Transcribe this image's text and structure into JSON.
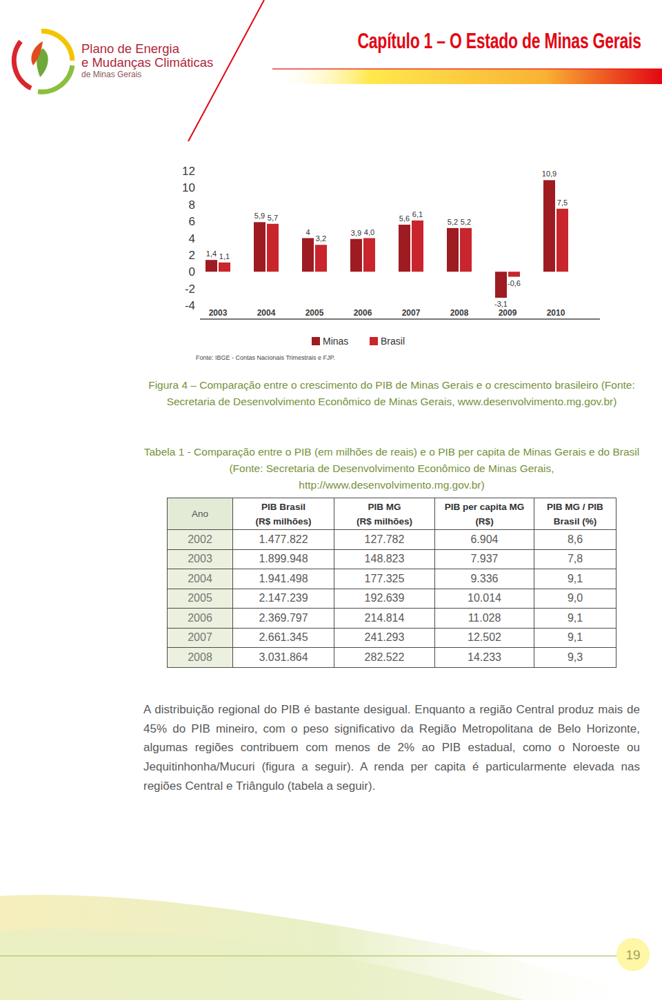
{
  "header": {
    "logo_lines": [
      "Plano de Energia",
      "e Mudanças Climáticas",
      "de Minas Gerais"
    ],
    "chapter_title": "Capítulo 1 – O Estado de Minas Gerais"
  },
  "chart_data": {
    "type": "bar",
    "categories": [
      "2003",
      "2004",
      "2005",
      "2006",
      "2007",
      "2008",
      "2009",
      "2010"
    ],
    "series": [
      {
        "name": "Minas",
        "color": "#9e1b22",
        "values": [
          1.4,
          5.9,
          4,
          3.9,
          5.6,
          5.2,
          -3.1,
          10.9
        ],
        "value_labels": [
          "1,4",
          "5,9",
          "4",
          "3,9",
          "5,6",
          "5,2",
          "-3,1",
          "10,9"
        ]
      },
      {
        "name": "Brasil",
        "color": "#c9252c",
        "values": [
          1.1,
          5.7,
          3.2,
          4.0,
          6.1,
          5.2,
          -0.6,
          7.5
        ],
        "value_labels": [
          "1,1",
          "5,7",
          "3,2",
          "4,0",
          "6,1",
          "5,2",
          "-0,6",
          "7,5"
        ]
      }
    ],
    "ylim": [
      -4,
      12
    ],
    "yticks": [
      -4,
      -2,
      0,
      2,
      4,
      6,
      8,
      10,
      12
    ],
    "grid": false,
    "legend": "bottom",
    "data_labels": true,
    "source": "Fonte: IBGE - Contas Nacionais Trimestrais e FJP."
  },
  "figure_caption": {
    "lines": [
      "Figura 4 – Comparação entre o crescimento do PIB de Minas Gerais e o crescimento brasileiro (Fonte:",
      "Secretaria de Desenvolvimento Econômico de Minas Gerais, www.desenvolvimento.mg.gov.br)"
    ]
  },
  "table_caption": {
    "lines": [
      "Tabela 1 - Comparação entre o PIB (em milhões de reais) e o PIB per capita de Minas Gerais e do Brasil",
      "(Fonte: Secretaria de Desenvolvimento Econômico de Minas Gerais,",
      "http://www.desenvolvimento.mg.gov.br)"
    ]
  },
  "table": {
    "header": [
      [
        "Ano"
      ],
      [
        "PIB Brasil",
        "(R$ milhões)"
      ],
      [
        "PIB MG",
        "(R$ milhões)"
      ],
      [
        "PIB per capita MG",
        "(R$)"
      ],
      [
        "PIB MG / PIB",
        "Brasil (%)"
      ]
    ],
    "rows": [
      [
        "2002",
        "1.477.822",
        "127.782",
        "6.904",
        "8,6"
      ],
      [
        "2003",
        "1.899.948",
        "148.823",
        "7.937",
        "7,8"
      ],
      [
        "2004",
        "1.941.498",
        "177.325",
        "9.336",
        "9,1"
      ],
      [
        "2005",
        "2.147.239",
        "192.639",
        "10.014",
        "9,0"
      ],
      [
        "2006",
        "2.369.797",
        "214.814",
        "11.028",
        "9,1"
      ],
      [
        "2007",
        "2.661.345",
        "241.293",
        "12.502",
        "9,1"
      ],
      [
        "2008",
        "3.031.864",
        "282.522",
        "14.233",
        "9,3"
      ]
    ]
  },
  "paragraph": {
    "lines": [
      "A distribuição regional do PIB é bastante desigual. Enquanto a região Central produz mais de",
      "45% do PIB mineiro, com o peso significativo da Região Metropolitana de Belo Horizonte,",
      "algumas regiões contribuem com menos de 2% ao PIB estadual, como o Noroeste ou",
      "Jequitinhonha/Mucuri (figura a seguir). A renda per capita é particularmente elevada nas",
      "regiões Central e Triângulo (tabela a seguir)."
    ]
  },
  "page_number": "19"
}
